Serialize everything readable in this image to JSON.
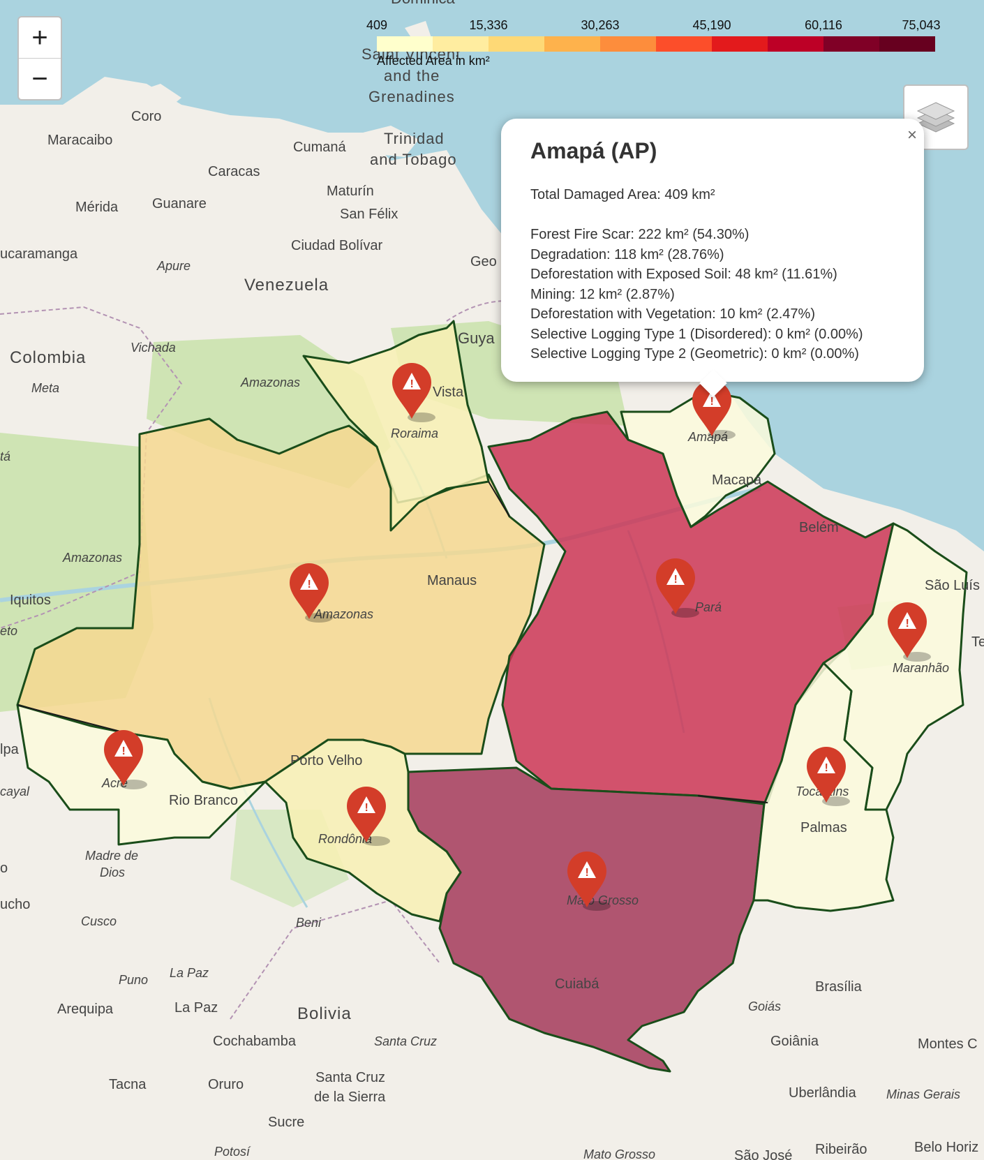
{
  "zoom": {
    "in_label": "+",
    "out_label": "−"
  },
  "legend": {
    "ticks": [
      "409",
      "15,336",
      "30,263",
      "45,190",
      "60,116",
      "75,043"
    ],
    "caption": "Affected Area in km²",
    "colors": [
      "#ffffcc",
      "#ffeda0",
      "#fed976",
      "#feb24c",
      "#fd8d3c",
      "#fc4e2a",
      "#e31a1c",
      "#bd0026",
      "#800026",
      "#67001f"
    ]
  },
  "popup": {
    "title": "Amapá (AP)",
    "total": "Total Damaged Area: 409 km²",
    "breakdown": [
      "Forest Fire Scar: 222 km² (54.30%)",
      "Degradation: 118 km² (28.76%)",
      "Deforestation with Exposed Soil: 48 km² (11.61%)",
      "Mining: 12 km² (2.87%)",
      "Deforestation with Vegetation: 10 km² (2.47%)",
      "Selective Logging Type 1 (Disordered): 0 km² (0.00%)",
      "Selective Logging Type 2 (Geometric): 0 km² (0.00%)"
    ],
    "close": "×"
  },
  "states": [
    {
      "name": "Amazonas",
      "color": "#f6d890"
    },
    {
      "name": "Pará",
      "color": "#cc3656"
    },
    {
      "name": "Mato Grosso",
      "color": "#a53a5a"
    },
    {
      "name": "Roraima",
      "color": "#f8f0b4"
    },
    {
      "name": "Amapá",
      "color": "#fbfadc"
    },
    {
      "name": "Acre",
      "color": "#fbfadc"
    },
    {
      "name": "Rondônia",
      "color": "#f8f0b4"
    },
    {
      "name": "Maranhão",
      "color": "#fbfadc"
    },
    {
      "name": "Tocantins",
      "color": "#fbfadc"
    }
  ],
  "places": {
    "venezuela": "Venezuela",
    "colombia": "Colombia",
    "bolivia": "Bolivia",
    "maracaibo": "Maracaibo",
    "coro": "Coro",
    "caracas": "Caracas",
    "cumana": "Cumaná",
    "merida": "Mérida",
    "guanare": "Guanare",
    "maturin": "Maturín",
    "sanfelix": "San Félix",
    "ciudadbolivar": "Ciudad Bolívar",
    "bucaramanga": "ucaramanga",
    "apure": "Apure",
    "vichada": "Vichada",
    "meta": "Meta",
    "amazonasco": "Amazonas",
    "amazonasve": "Amazonas",
    "iquitos": "Iquitos",
    "trinidad1": "Trinidad",
    "trinidad2": "and Tobago",
    "sv1": "Saint Vincent",
    "sv2": "and the",
    "sv3": "Grenadines",
    "guyana": "Guya",
    "geo": "Geo",
    "boavista": "Vista",
    "manaus": "Manaus",
    "amazonasbr": "Amazonas",
    "roraima": "Roraima",
    "amapa": "Amapá",
    "macapa": "Macapá",
    "belem": "Belém",
    "para": "Pará",
    "saoluis": "São Luís",
    "maranhao": "Maranhão",
    "te": "Te",
    "acre": "Acre",
    "riobranco": "Rio Branco",
    "portovelho": "Porto Velho",
    "rondonia": "Rondônia",
    "tocantins": "Tocantins",
    "palmas": "Palmas",
    "matogrosso": "Mato Grosso",
    "cuiaba": "Cuiabá",
    "brasilia": "Brasília",
    "goias": "Goiás",
    "goiania": "Goiânia",
    "montesc": "Montes C",
    "uberlandia": "Uberlândia",
    "minasgerais": "Minas Gerais",
    "beloh": "Belo Horiz",
    "ribeirao": "Ribeirão",
    "saojose": "São José",
    "matogrossosul": "Mato Grosso",
    "santacruz": "Santa Cruz",
    "santacruzs1": "Santa Cruz",
    "santacruzs2": "de la Sierra",
    "cochabamba": "Cochabamba",
    "lapaz": "La Paz",
    "lapazdept": "La Paz",
    "beni": "Beni",
    "arequipa": "Arequipa",
    "puno": "Puno",
    "cusco": "Cusco",
    "tacna": "Tacna",
    "oruro": "Oruro",
    "sucre": "Sucre",
    "potosi": "Potosí",
    "madrededios1": "Madre de",
    "madrededios2": "Dios",
    "cucho": "ucho",
    "cayal": "cayal",
    "eto": "eto",
    "ta": "tá",
    "pa": "lpa",
    "o": "o",
    "dominica": "Dominica"
  }
}
